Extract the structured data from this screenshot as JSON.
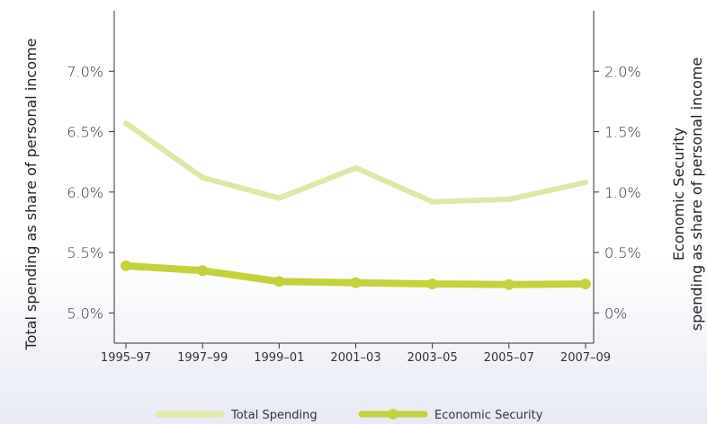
{
  "chart_data": {
    "type": "line",
    "categories": [
      "1995–97",
      "1997–99",
      "1999–01",
      "2001–03",
      "2003–05",
      "2005–07",
      "2007–09"
    ],
    "left_axis": {
      "label": "Total spending as share of personal income",
      "ticks": [
        5.0,
        5.5,
        6.0,
        6.5,
        7.0
      ],
      "tick_labels": [
        "5.0%",
        "5.5%",
        "6.0%",
        "6.5%",
        "7.0%"
      ],
      "ylim": [
        4.75,
        7.5
      ]
    },
    "right_axis": {
      "label_line1": "Economic Security",
      "label_line2": "spending as share of personal income",
      "ticks": [
        0.0,
        0.5,
        1.0,
        1.5,
        2.0
      ],
      "tick_labels": [
        "0%",
        "0.5%",
        "1.0%",
        "1.5%",
        "2.0%"
      ],
      "ylim": [
        -0.25,
        2.5
      ]
    },
    "series": [
      {
        "name": "Total Spending",
        "axis": "left",
        "color": "#dfe8a6",
        "markers": false,
        "values": [
          6.57,
          6.12,
          5.95,
          6.2,
          5.92,
          5.94,
          6.08
        ]
      },
      {
        "name": "Economic Security",
        "axis": "right",
        "color": "#c3d23a",
        "markers": true,
        "values": [
          0.39,
          0.35,
          0.26,
          0.25,
          0.24,
          0.235,
          0.24
        ]
      }
    ],
    "legend": {
      "placement": "bottom-center"
    },
    "grid": false
  }
}
